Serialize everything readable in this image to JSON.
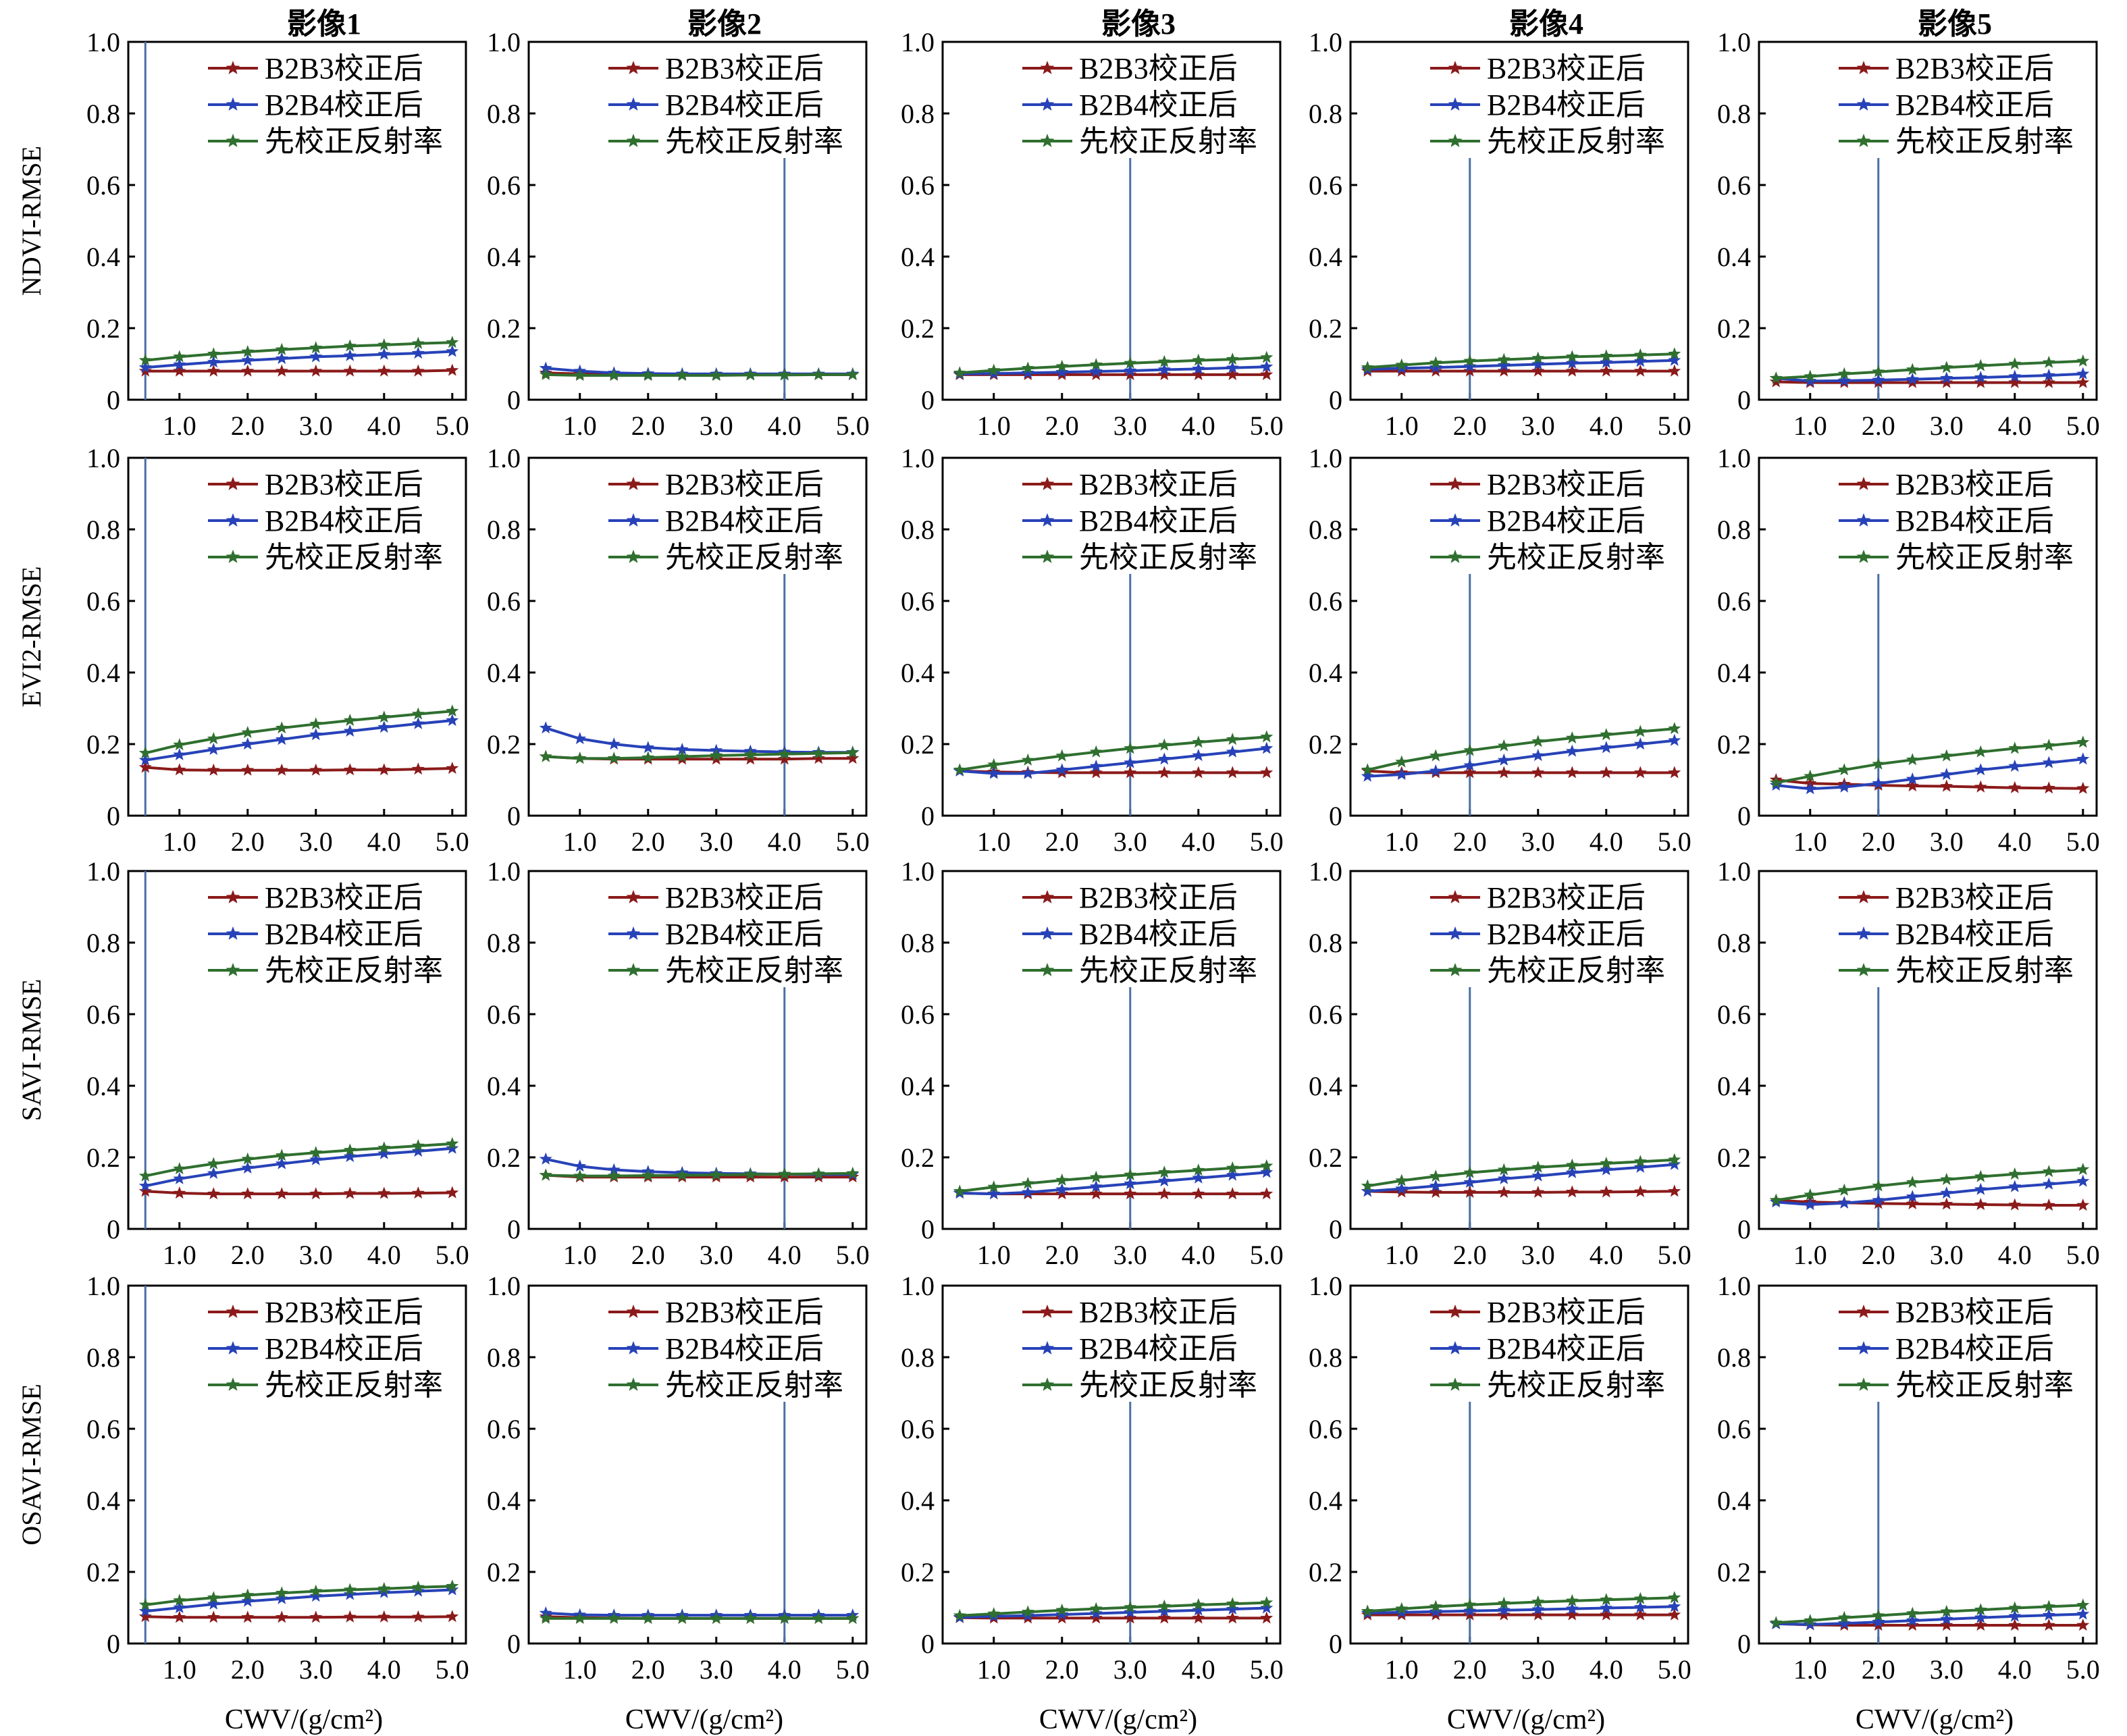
{
  "colors": {
    "b2b3": "#8b1a1a",
    "b2b4": "#2742b8",
    "pre": "#2f6f2f",
    "vline": "#4a6fa5"
  },
  "x_axis_label": "CWV/(g/cm²)",
  "chart_data": {
    "type": "line",
    "layout": "4x5 grid of subplots",
    "columns": [
      "影像1",
      "影像2",
      "影像3",
      "影像4",
      "影像5"
    ],
    "rows": [
      "NDVI-RMSE",
      "EVI2-RMSE",
      "SAVI-RMSE",
      "OSAVI-RMSE"
    ],
    "x": [
      0.5,
      1.0,
      1.5,
      2.0,
      2.5,
      3.0,
      3.5,
      4.0,
      4.5,
      5.0
    ],
    "xticks": [
      "1.0",
      "2.0",
      "3.0",
      "4.0",
      "5.0"
    ],
    "yticks": [
      "0",
      "0.2",
      "0.4",
      "0.6",
      "0.8",
      "1.0"
    ],
    "ylim": [
      0,
      1.0
    ],
    "xlim": [
      0.25,
      5.2
    ],
    "xlabel": "CWV/(g/cm²)",
    "legend_position": "top-right",
    "series_names": [
      "B2B3校正后",
      "B2B4校正后",
      "先校正反射率"
    ],
    "marker": "star",
    "reference_x": [
      0.5,
      4.0,
      3.0,
      2.0,
      2.0
    ],
    "panels": [
      [
        {
          "B2B3": [
            0.08,
            0.08,
            0.08,
            0.08,
            0.08,
            0.08,
            0.08,
            0.08,
            0.08,
            0.082
          ],
          "B2B4": [
            0.09,
            0.098,
            0.105,
            0.11,
            0.115,
            0.12,
            0.123,
            0.127,
            0.13,
            0.135
          ],
          "pre": [
            0.11,
            0.12,
            0.128,
            0.134,
            0.14,
            0.145,
            0.15,
            0.153,
            0.157,
            0.16
          ]
        },
        {
          "B2B3": [
            0.075,
            0.072,
            0.071,
            0.07,
            0.07,
            0.07,
            0.07,
            0.07,
            0.07,
            0.07
          ],
          "B2B4": [
            0.088,
            0.08,
            0.075,
            0.073,
            0.072,
            0.072,
            0.072,
            0.072,
            0.072,
            0.072
          ],
          "pre": [
            0.07,
            0.068,
            0.068,
            0.068,
            0.068,
            0.068,
            0.069,
            0.069,
            0.07,
            0.07
          ]
        },
        {
          "B2B3": [
            0.07,
            0.07,
            0.07,
            0.07,
            0.07,
            0.07,
            0.07,
            0.07,
            0.07,
            0.07
          ],
          "B2B4": [
            0.072,
            0.073,
            0.075,
            0.077,
            0.079,
            0.081,
            0.084,
            0.086,
            0.089,
            0.092
          ],
          "pre": [
            0.075,
            0.082,
            0.088,
            0.093,
            0.098,
            0.102,
            0.106,
            0.11,
            0.113,
            0.118
          ]
        },
        {
          "B2B3": [
            0.08,
            0.08,
            0.08,
            0.08,
            0.08,
            0.08,
            0.08,
            0.08,
            0.08,
            0.08
          ],
          "B2B4": [
            0.085,
            0.088,
            0.09,
            0.093,
            0.096,
            0.099,
            0.102,
            0.104,
            0.107,
            0.11
          ],
          "pre": [
            0.09,
            0.097,
            0.103,
            0.108,
            0.112,
            0.116,
            0.12,
            0.122,
            0.125,
            0.128
          ]
        },
        {
          "B2B3": [
            0.05,
            0.048,
            0.048,
            0.048,
            0.048,
            0.048,
            0.048,
            0.048,
            0.048,
            0.048
          ],
          "B2B4": [
            0.06,
            0.052,
            0.053,
            0.055,
            0.057,
            0.06,
            0.062,
            0.065,
            0.068,
            0.072
          ],
          "pre": [
            0.06,
            0.065,
            0.072,
            0.078,
            0.084,
            0.09,
            0.095,
            0.1,
            0.104,
            0.108
          ]
        }
      ],
      [
        {
          "B2B3": [
            0.135,
            0.128,
            0.127,
            0.127,
            0.127,
            0.127,
            0.128,
            0.128,
            0.13,
            0.132
          ],
          "B2B4": [
            0.155,
            0.17,
            0.185,
            0.2,
            0.213,
            0.226,
            0.236,
            0.247,
            0.257,
            0.266
          ],
          "pre": [
            0.175,
            0.198,
            0.215,
            0.232,
            0.245,
            0.256,
            0.266,
            0.275,
            0.284,
            0.292
          ]
        },
        {
          "B2B3": [
            0.165,
            0.16,
            0.158,
            0.158,
            0.158,
            0.158,
            0.158,
            0.158,
            0.16,
            0.16
          ],
          "B2B4": [
            0.245,
            0.215,
            0.2,
            0.19,
            0.185,
            0.182,
            0.18,
            0.178,
            0.177,
            0.177
          ],
          "pre": [
            0.165,
            0.16,
            0.16,
            0.162,
            0.165,
            0.168,
            0.17,
            0.172,
            0.174,
            0.176
          ]
        },
        {
          "B2B3": [
            0.125,
            0.122,
            0.121,
            0.12,
            0.12,
            0.12,
            0.12,
            0.12,
            0.12,
            0.12
          ],
          "B2B4": [
            0.125,
            0.118,
            0.118,
            0.128,
            0.138,
            0.148,
            0.158,
            0.168,
            0.178,
            0.188
          ],
          "pre": [
            0.128,
            0.142,
            0.155,
            0.167,
            0.178,
            0.188,
            0.197,
            0.205,
            0.213,
            0.22
          ]
        },
        {
          "B2B3": [
            0.125,
            0.12,
            0.12,
            0.12,
            0.12,
            0.12,
            0.12,
            0.12,
            0.12,
            0.12
          ],
          "B2B4": [
            0.11,
            0.115,
            0.125,
            0.14,
            0.155,
            0.168,
            0.18,
            0.19,
            0.2,
            0.21
          ],
          "pre": [
            0.128,
            0.15,
            0.167,
            0.182,
            0.195,
            0.207,
            0.217,
            0.226,
            0.235,
            0.243
          ]
        },
        {
          "B2B3": [
            0.1,
            0.09,
            0.088,
            0.085,
            0.083,
            0.082,
            0.08,
            0.078,
            0.077,
            0.076
          ],
          "B2B4": [
            0.085,
            0.075,
            0.08,
            0.09,
            0.102,
            0.115,
            0.128,
            0.138,
            0.148,
            0.158
          ],
          "pre": [
            0.092,
            0.11,
            0.128,
            0.144,
            0.156,
            0.167,
            0.178,
            0.188,
            0.196,
            0.205
          ]
        }
      ],
      [
        {
          "B2B3": [
            0.105,
            0.1,
            0.098,
            0.098,
            0.098,
            0.098,
            0.099,
            0.099,
            0.1,
            0.101
          ],
          "B2B4": [
            0.12,
            0.14,
            0.155,
            0.17,
            0.182,
            0.193,
            0.202,
            0.21,
            0.217,
            0.225
          ],
          "pre": [
            0.148,
            0.168,
            0.182,
            0.195,
            0.205,
            0.213,
            0.22,
            0.226,
            0.232,
            0.238
          ]
        },
        {
          "B2B3": [
            0.15,
            0.145,
            0.145,
            0.145,
            0.145,
            0.145,
            0.145,
            0.145,
            0.145,
            0.145
          ],
          "B2B4": [
            0.195,
            0.175,
            0.165,
            0.16,
            0.157,
            0.155,
            0.154,
            0.153,
            0.152,
            0.152
          ],
          "pre": [
            0.15,
            0.148,
            0.148,
            0.149,
            0.15,
            0.151,
            0.152,
            0.153,
            0.154,
            0.155
          ]
        },
        {
          "B2B3": [
            0.1,
            0.098,
            0.098,
            0.098,
            0.098,
            0.098,
            0.098,
            0.098,
            0.098,
            0.098
          ],
          "B2B4": [
            0.1,
            0.098,
            0.102,
            0.11,
            0.118,
            0.126,
            0.134,
            0.142,
            0.15,
            0.158
          ],
          "pre": [
            0.105,
            0.117,
            0.127,
            0.136,
            0.144,
            0.151,
            0.158,
            0.164,
            0.17,
            0.176
          ]
        },
        {
          "B2B3": [
            0.105,
            0.103,
            0.102,
            0.102,
            0.102,
            0.102,
            0.103,
            0.103,
            0.104,
            0.105
          ],
          "B2B4": [
            0.105,
            0.112,
            0.12,
            0.13,
            0.14,
            0.148,
            0.157,
            0.165,
            0.172,
            0.18
          ],
          "pre": [
            0.12,
            0.135,
            0.147,
            0.157,
            0.165,
            0.172,
            0.178,
            0.183,
            0.188,
            0.193
          ]
        },
        {
          "B2B3": [
            0.08,
            0.075,
            0.073,
            0.071,
            0.07,
            0.069,
            0.068,
            0.067,
            0.066,
            0.066
          ],
          "B2B4": [
            0.075,
            0.068,
            0.072,
            0.08,
            0.09,
            0.1,
            0.11,
            0.118,
            0.125,
            0.133
          ],
          "pre": [
            0.08,
            0.095,
            0.108,
            0.12,
            0.13,
            0.138,
            0.146,
            0.153,
            0.16,
            0.166
          ]
        }
      ],
      [
        {
          "B2B3": [
            0.075,
            0.073,
            0.073,
            0.073,
            0.073,
            0.073,
            0.074,
            0.074,
            0.074,
            0.075
          ],
          "B2B4": [
            0.09,
            0.1,
            0.11,
            0.118,
            0.125,
            0.132,
            0.137,
            0.142,
            0.146,
            0.15
          ],
          "pre": [
            0.108,
            0.12,
            0.128,
            0.135,
            0.141,
            0.146,
            0.15,
            0.153,
            0.157,
            0.16
          ]
        },
        {
          "B2B3": [
            0.075,
            0.072,
            0.071,
            0.07,
            0.07,
            0.07,
            0.07,
            0.07,
            0.07,
            0.07
          ],
          "B2B4": [
            0.085,
            0.08,
            0.079,
            0.079,
            0.079,
            0.079,
            0.079,
            0.079,
            0.079,
            0.079
          ],
          "pre": [
            0.07,
            0.07,
            0.07,
            0.07,
            0.07,
            0.07,
            0.07,
            0.07,
            0.07,
            0.07
          ]
        },
        {
          "B2B3": [
            0.072,
            0.071,
            0.071,
            0.071,
            0.071,
            0.071,
            0.071,
            0.071,
            0.071,
            0.071
          ],
          "B2B4": [
            0.073,
            0.076,
            0.078,
            0.081,
            0.084,
            0.087,
            0.09,
            0.093,
            0.096,
            0.099
          ],
          "pre": [
            0.078,
            0.083,
            0.088,
            0.093,
            0.097,
            0.101,
            0.104,
            0.108,
            0.111,
            0.114
          ]
        },
        {
          "B2B3": [
            0.08,
            0.08,
            0.08,
            0.08,
            0.08,
            0.08,
            0.08,
            0.08,
            0.08,
            0.08
          ],
          "B2B4": [
            0.085,
            0.087,
            0.089,
            0.091,
            0.093,
            0.095,
            0.097,
            0.099,
            0.101,
            0.103
          ],
          "pre": [
            0.09,
            0.097,
            0.103,
            0.108,
            0.112,
            0.116,
            0.119,
            0.122,
            0.125,
            0.128
          ]
        },
        {
          "B2B3": [
            0.055,
            0.052,
            0.051,
            0.051,
            0.051,
            0.051,
            0.051,
            0.051,
            0.051,
            0.051
          ],
          "B2B4": [
            0.055,
            0.053,
            0.056,
            0.06,
            0.064,
            0.068,
            0.072,
            0.076,
            0.079,
            0.082
          ],
          "pre": [
            0.058,
            0.064,
            0.072,
            0.078,
            0.084,
            0.089,
            0.094,
            0.099,
            0.103,
            0.107
          ]
        }
      ]
    ]
  }
}
